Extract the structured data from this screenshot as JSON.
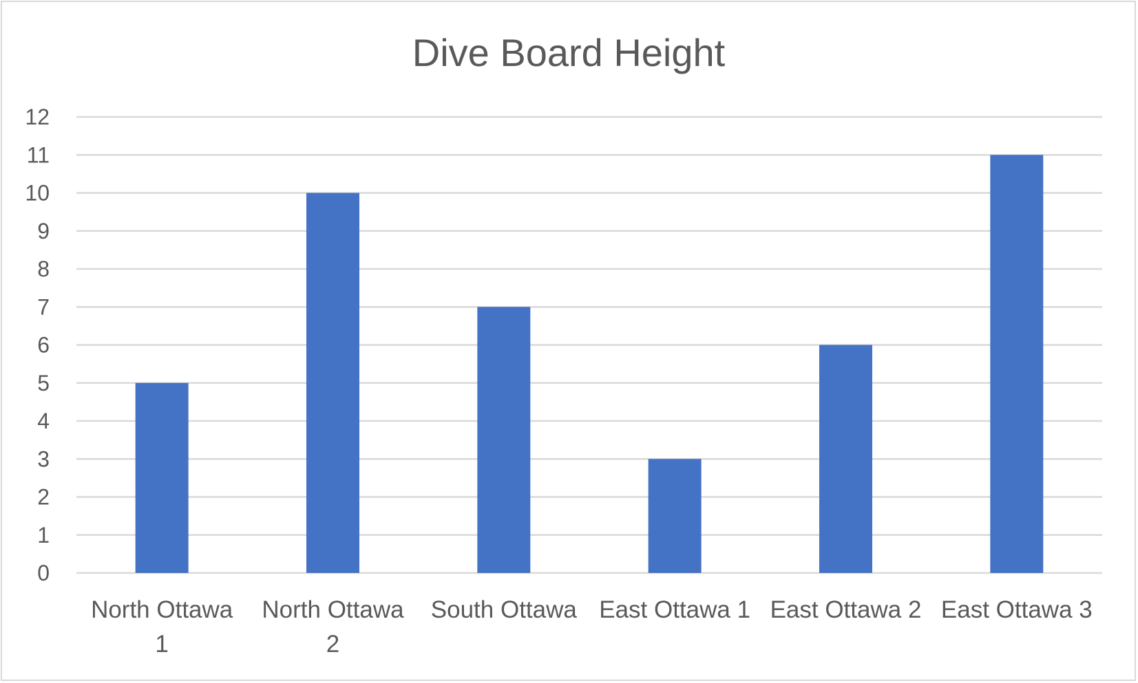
{
  "chart_data": {
    "type": "bar",
    "title": "Dive Board Height",
    "categories": [
      "North Ottawa 1",
      "North Ottawa 2",
      "South Ottawa",
      "East Ottawa 1",
      "East Ottawa 2",
      "East Ottawa 3"
    ],
    "category_label_lines": [
      [
        "North Ottawa",
        "1"
      ],
      [
        "North Ottawa",
        "2"
      ],
      [
        "South Ottawa"
      ],
      [
        "East Ottawa 1"
      ],
      [
        "East Ottawa 2"
      ],
      [
        "East Ottawa 3"
      ]
    ],
    "values": [
      5,
      10,
      7,
      3,
      6,
      11
    ],
    "ylim": [
      0,
      12
    ],
    "yticks": [
      0,
      1,
      2,
      3,
      4,
      5,
      6,
      7,
      8,
      9,
      10,
      11,
      12
    ],
    "xlabel": "",
    "ylabel": "",
    "grid": true,
    "legend": "none",
    "bar_color": "#4472c4",
    "grid_color": "#d9d9d9",
    "text_color": "#595959"
  }
}
